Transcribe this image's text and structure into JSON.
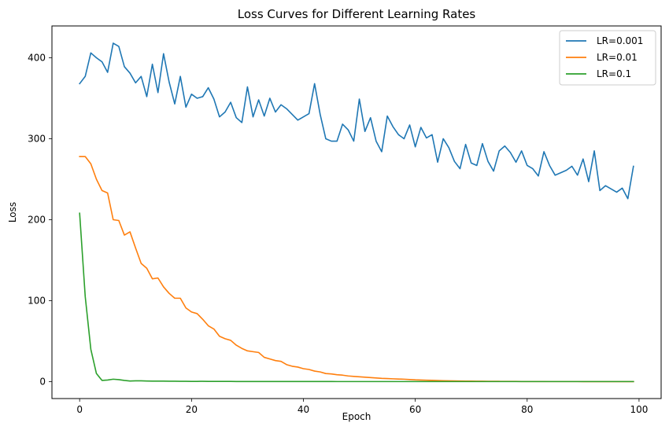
{
  "chart_data": {
    "type": "line",
    "title": "Loss Curves for Different Learning Rates",
    "xlabel": "Epoch",
    "ylabel": "Loss",
    "xlim": [
      -4.95,
      103.95
    ],
    "ylim": [
      -20.9,
      439.3
    ],
    "xticks": [
      0,
      20,
      40,
      60,
      80,
      100
    ],
    "yticks": [
      0,
      100,
      200,
      300,
      400
    ],
    "grid": false,
    "legend_position": "top-right",
    "x": [
      0,
      1,
      2,
      3,
      4,
      5,
      6,
      7,
      8,
      9,
      10,
      11,
      12,
      13,
      14,
      15,
      16,
      17,
      18,
      19,
      20,
      21,
      22,
      23,
      24,
      25,
      26,
      27,
      28,
      29,
      30,
      31,
      32,
      33,
      34,
      35,
      36,
      37,
      38,
      39,
      40,
      41,
      42,
      43,
      44,
      45,
      46,
      47,
      48,
      49,
      50,
      51,
      52,
      53,
      54,
      55,
      56,
      57,
      58,
      59,
      60,
      61,
      62,
      63,
      64,
      65,
      66,
      67,
      68,
      69,
      70,
      71,
      72,
      73,
      74,
      75,
      76,
      77,
      78,
      79,
      80,
      81,
      82,
      83,
      84,
      85,
      86,
      87,
      88,
      89,
      90,
      91,
      92,
      93,
      94,
      95,
      96,
      97,
      98,
      99
    ],
    "series": [
      {
        "name": "LR=0.001",
        "color": "#1f77b4",
        "values": [
          368,
          377,
          406,
          400,
          395,
          382,
          418,
          414,
          389,
          381,
          369,
          377,
          352,
          392,
          357,
          405,
          370,
          343,
          377,
          339,
          355,
          350,
          352,
          363,
          349,
          327,
          333,
          345,
          326,
          320,
          364,
          327,
          348,
          328,
          350,
          333,
          342,
          337,
          330,
          323,
          327,
          331,
          368,
          330,
          300,
          297,
          297,
          318,
          311,
          297,
          349,
          309,
          326,
          297,
          284,
          328,
          315,
          305,
          300,
          317,
          290,
          314,
          301,
          305,
          271,
          300,
          289,
          272,
          263,
          293,
          270,
          267,
          294,
          272,
          260,
          285,
          291,
          283,
          271,
          285,
          267,
          263,
          254,
          284,
          267,
          255,
          258,
          261,
          266,
          255,
          275,
          247,
          285,
          236,
          242,
          238,
          234,
          239,
          226,
          266
        ]
      },
      {
        "name": "LR=0.01",
        "color": "#ff7f0e",
        "values": [
          278,
          278,
          269,
          250,
          236,
          233,
          200,
          199,
          181,
          185,
          165,
          146,
          140,
          127,
          128,
          117,
          109,
          103,
          103,
          91,
          86,
          84,
          77,
          69,
          65,
          56,
          53,
          51,
          45,
          41,
          38,
          37,
          36,
          30,
          28,
          26,
          25,
          21,
          19,
          18,
          16,
          15,
          13,
          12,
          10,
          9.5,
          8.5,
          8,
          7,
          6.5,
          6,
          5.5,
          5,
          4.5,
          4,
          3.8,
          3.5,
          3.2,
          3,
          2.6,
          2.2,
          2,
          1.8,
          1.6,
          1.4,
          1.2,
          1.0,
          0.9,
          0.8,
          0.7,
          0.6,
          0.5,
          0.5,
          0.4,
          0.4,
          0.35,
          0.3,
          0.3,
          0.25,
          0.2,
          0.2,
          0.2,
          0.15,
          0.15,
          0.1,
          0.1,
          0.1,
          0.1,
          0.1,
          0.1,
          0.05,
          0.05,
          0.05,
          0.05,
          0.05,
          0.05,
          0.05,
          0.05,
          0.05,
          0.05
        ]
      },
      {
        "name": "LR=0.1",
        "color": "#2ca02c",
        "values": [
          208,
          105,
          40,
          10,
          1.5,
          2,
          3,
          2.5,
          1.5,
          0.8,
          1,
          1,
          0.8,
          0.6,
          0.7,
          0.6,
          0.5,
          0.5,
          0.4,
          0.4,
          0.3,
          0.3,
          0.4,
          0.3,
          0.3,
          0.3,
          0.3,
          0.3,
          0.2,
          0.2,
          0.2,
          0.2,
          0.2,
          0.2,
          0.2,
          0.2,
          0.2,
          0.2,
          0.2,
          0.2,
          0.2,
          0.2,
          0.2,
          0.2,
          0.2,
          0.2,
          0.1,
          0.1,
          0.1,
          0.1,
          0.1,
          0.1,
          0.1,
          0.1,
          0.1,
          0.1,
          0.1,
          0.1,
          0.1,
          0.1,
          0.1,
          0.1,
          0.1,
          0.1,
          0.1,
          0.1,
          0.1,
          0.1,
          0.1,
          0.1,
          0.1,
          0.1,
          0.1,
          0.1,
          0.1,
          0.1,
          0.1,
          0.1,
          0.1,
          0.1,
          0.1,
          0.1,
          0.1,
          0.1,
          0.1,
          0.1,
          0.1,
          0.1,
          0.1,
          0.1,
          0.1,
          0.1,
          0.1,
          0.1,
          0.1,
          0.1,
          0.1,
          0.1,
          0.1,
          0.1
        ]
      }
    ]
  }
}
